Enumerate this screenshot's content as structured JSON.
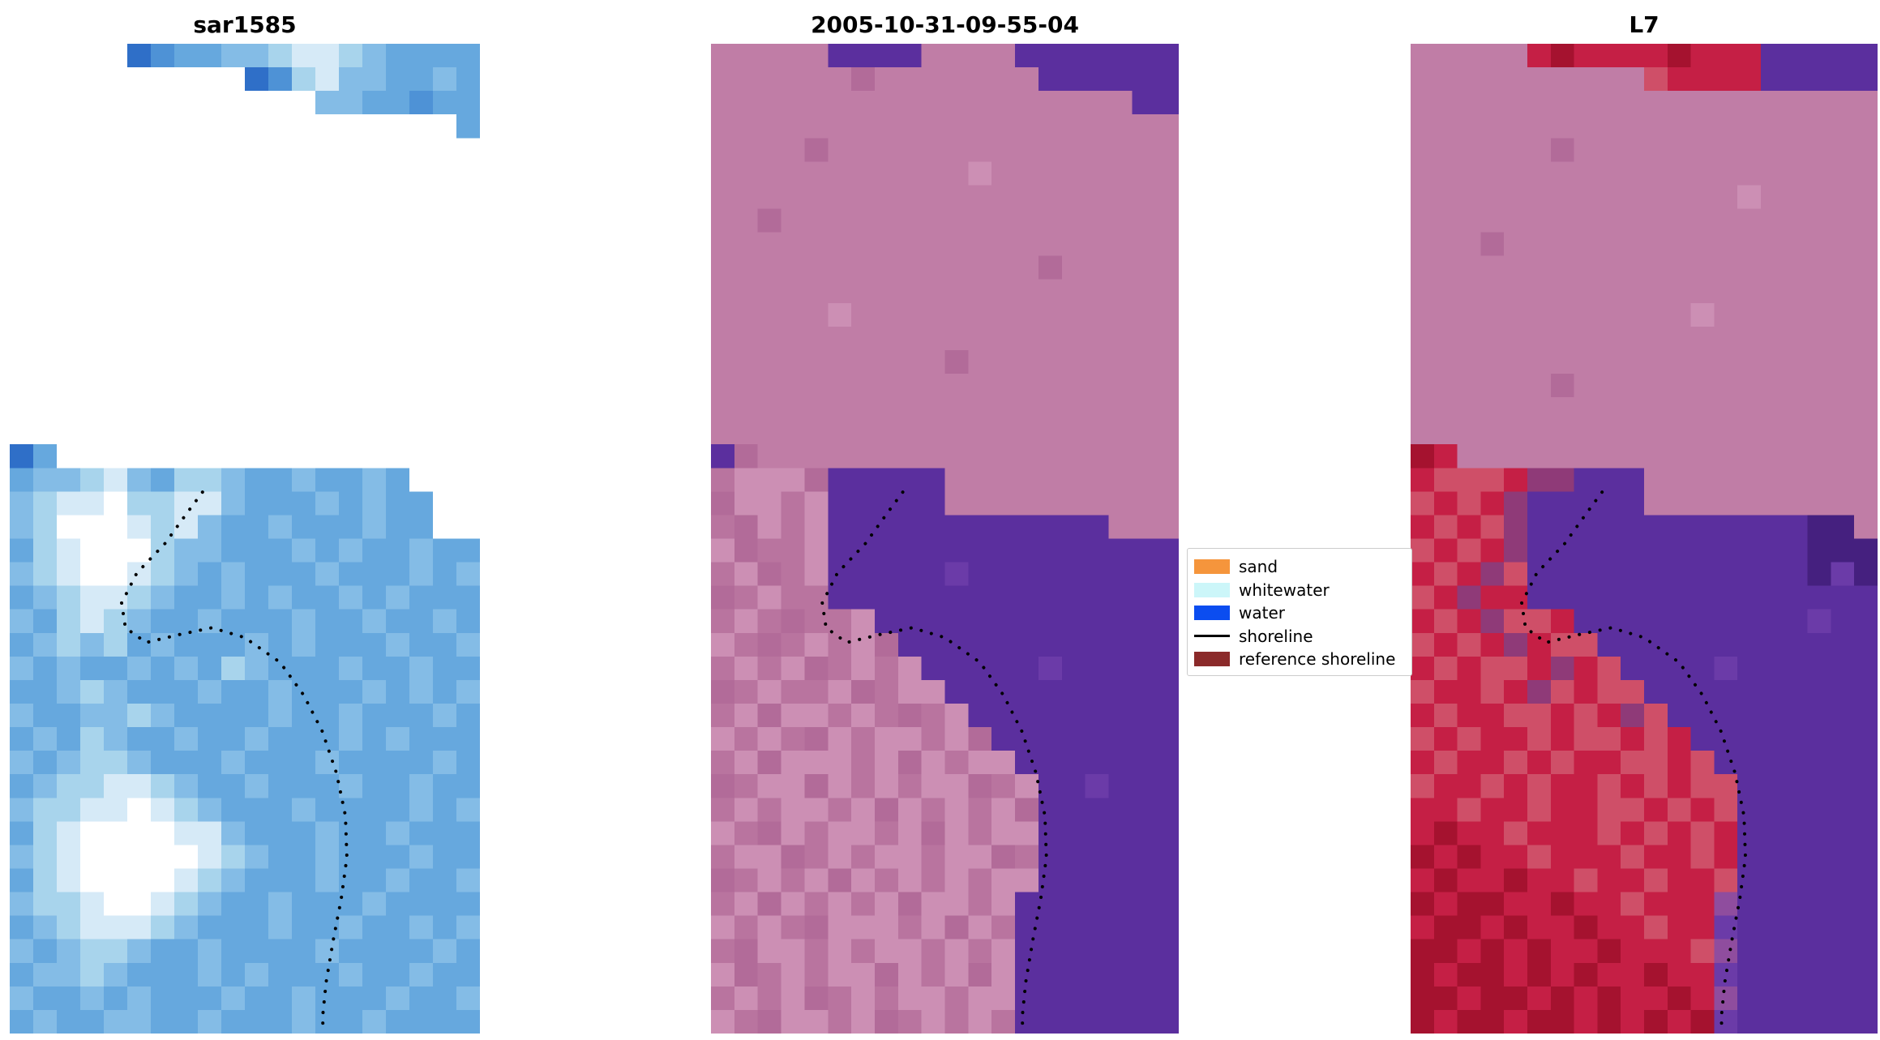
{
  "panels": [
    {
      "title": "sar1585",
      "grid": {
        "palette": {
          "f": "#2f6fc8",
          "a": "#4e92d6",
          "b": "#66a8de",
          "c": "#84bce6",
          "d": "#a8d4ec",
          "e": "#d6eaf7",
          "w": "#ffffff"
        },
        "rows": [
          ".....fabbccdeedcbbbb",
          "..........fadeccbbcb",
          ".............ccbbabb",
          "...................b",
          "....................",
          "....................",
          "....................",
          "....................",
          "....................",
          "....................",
          "....................",
          "....................",
          "....................",
          "....................",
          "....................",
          "....................",
          "....................",
          "fb..................",
          "bccdecbddcbbcbbcb...",
          "cdeewddeecbbbcbcbb..",
          "cdwwwedecbbcbbbcbb..",
          "bdewwwdccbbbcbcbbcbb",
          "cdewwedcbcbbbcbbbcbc",
          "bcdeedcbbcbcbbcbcbbb",
          "cbdedcbbcbbbcbbcbbcb",
          "bcdcdbcbbbcbcbbbcbbc",
          "cbcbbcbcbdcbbbcbbcbb",
          "bbcdcbbbcbbcbbbcbcbc",
          "cbbccdcbbbbcbbcbbbcb",
          "bcbdcbbcbbcbbbcbcbbb",
          "cbcddcbbbcbbbcbbbbcb",
          "bcddeedcbbcbbbcbbcbb",
          "cddeewedcbbbcbbbbcbc",
          "bdewwwweecbbbcbbcbbb",
          "cdewwwwwedcbbcbbbcbb",
          "bdewwwwedcbbbcbbcbbc",
          "cddewwedcbbcbbbcbbbb",
          "bcdeeedcbbbcbbcbbcbc",
          "cbcddcbbcbbbbcbbbbcb",
          "bccdcbbbcbcbbbcbbcbb",
          "cbbcbcbbbcbbcbbbcbbc",
          "bcbbccbbcbbbcbbcbbbb"
        ]
      }
    },
    {
      "title": "2005-10-31-09-55-04",
      "grid": {
        "palette": {
          "p": "#c07da6",
          "q": "#b26b99",
          "s": "#cc8fb4",
          "n": "#b9749f",
          "u": "#5b2f9e",
          "v": "#6b3ba8",
          "d": "#4a2387"
        },
        "rows": [
          "pppppuuuuppppuuuuuuu",
          "ppppppqpppppppuuuuuu",
          "ppppppppppppppppppuu",
          "pppppppppppppppppppp",
          "ppppqppppppppppppppp",
          "pppppppppppspppppppp",
          "pppppppppppppppppppp",
          "ppqppppppppppppppppp",
          "pppppppppppppppppppp",
          "ppppppppppppppqppppp",
          "pppppppppppppppppppp",
          "pppppspppppppppppppp",
          "pppppppppppppppppppp",
          "ppppppppppqppppppppp",
          "pppppppppppppppppppp",
          "pppppppppppppppppppp",
          "pppppppppppppppppppp",
          "uqpppppppppppppppppp",
          "nsssquuuuupppppppppp",
          "qssnsuuuuupppppppppp",
          "nqsnsuuuuuuuuuuuuppp",
          "sqnnsuuuuuuuuuuuuuuu",
          "nsqnsuuuuuvuuuuuuuuu",
          "qnsnnuuuuuuuuuuuuuuu",
          "nsnqnnsuuuuuuuuuuuuu",
          "snqnsnsquuuuuuuuuuuu",
          "nsnsqnsnsuuuuuvuuuuu",
          "qnsnnsqnssuuuuuuuuuu",
          "nsqssnsnqnsuuuuuuuuu",
          "snsnqsnssnsquuuuuuuu",
          "nsqsssnsqsnssuuuuuuu",
          "qnssqsnsnssqnsuuvuuu",
          "nsnssnsqsnsnsquuuuuu",
          "snqsnssnsqsnssuuuuuu",
          "nssqnsnssnssqnuuuuuu",
          "qnsnsqsnsnsnssuuuuuu",
          "nsqsnsnsqssnsuuuuuuu",
          "snsnqsssnsqsnuuuuuuu",
          "nqssnsnssnsnsuuuuuuu",
          "sqnsnssqsnsqsuuuuuuu",
          "nsnsqnsnssnssuuuuuuu",
          "snqssnsqnsnsnuuuuuuu"
        ]
      }
    },
    {
      "title": "L7",
      "grid": {
        "palette": {
          "p": "#c07da6",
          "q": "#b26b99",
          "s": "#cc8fb4",
          "r": "#c51f45",
          "R": "#a5122f",
          "x": "#cf4f68",
          "y": "#8f3a78",
          "u": "#5b2f9e",
          "v": "#6b3ba8",
          "d": "#45207f",
          "m": "#8f4d9e"
        },
        "rows": [
          "ppppprRrrrrRrrruuuuu",
          "ppppppppppxrrrruuuuu",
          "pppppppppppppppppppp",
          "pppppppppppppppppppp",
          "ppppppqppppppppppppp",
          "pppppppppppppppppppp",
          "ppppppppppppppsppppp",
          "pppppppppppppppppppp",
          "pppqpppppppppppppppp",
          "pppppppppppppppppppp",
          "pppppppppppppppppppp",
          "ppppppppppppsppppppp",
          "pppppppppppppppppppp",
          "pppppppppppppppppppp",
          "ppppppqppppppppppppp",
          "pppppppppppppppppppp",
          "pppppppppppppppppppp",
          "Rrpppppppppppppppppp",
          "rxxxryyuuupppppppppp",
          "xrxryuuuuupppppppppp",
          "rxrxyuuuuuuuuuuuuddp",
          "xrxryuuuuuuuuuuuuddd",
          "rxryxuuuuuuuuuuuudvd",
          "xryrruuuuuuuuuuuuuuu",
          "rxryxxruuuuuuuuuuvuu",
          "xrxryrxxuuuuuuuuuuuu",
          "rxrxxryrxuuuuvuuuuuu",
          "xrrxryxrxxuuuuuuuuuu",
          "rxrrxxrxryxuuuuuuuuu",
          "xrxrrxrxxrxruuuuuuuu",
          "rxrrxrxrrxxrxuuuuuuu",
          "xrrxrxrrxrxrxxuuuuuu",
          "rrxrrxrrxxrxrxuuuuuu",
          "rRrrxrrrxrxrxruuuuuu",
          "RrRrrxrrrxrrxruuuuuu",
          "rRrrRrrxrrxrrxuuuuuu",
          "RrRRrrRrrxrrrmuuuuuu",
          "rRRrRrrRrrxrrvuuuuuu",
          "RRrRrRrrRrrrxmuuuuuu",
          "RrRRrRrRrrRrrvuuuuuu",
          "RRrRRrRrRrrRrmuuuuuu",
          "RrRRrRRrRrRrRvuuuuuu"
        ]
      }
    }
  ],
  "shoreline": {
    "color": "#000000",
    "style": "dotted",
    "points": [
      [
        0.41,
        0.453
      ],
      [
        0.377,
        0.474
      ],
      [
        0.33,
        0.505
      ],
      [
        0.27,
        0.535
      ],
      [
        0.238,
        0.565
      ],
      [
        0.246,
        0.59
      ],
      [
        0.29,
        0.605
      ],
      [
        0.36,
        0.597
      ],
      [
        0.43,
        0.59
      ],
      [
        0.5,
        0.6
      ],
      [
        0.575,
        0.625
      ],
      [
        0.625,
        0.658
      ],
      [
        0.665,
        0.695
      ],
      [
        0.695,
        0.737
      ],
      [
        0.714,
        0.78
      ],
      [
        0.717,
        0.822
      ],
      [
        0.705,
        0.864
      ],
      [
        0.688,
        0.906
      ],
      [
        0.673,
        0.948
      ],
      [
        0.665,
        0.985
      ],
      [
        0.668,
        1.0
      ]
    ]
  },
  "legend": {
    "items": [
      {
        "label": "sand",
        "color": "#f5953c",
        "swatch": "patch"
      },
      {
        "label": "whitewater",
        "color": "#ccf6f9",
        "swatch": "patch"
      },
      {
        "label": "water",
        "color": "#0b4df0",
        "swatch": "patch"
      },
      {
        "label": "shoreline",
        "color": "#000000",
        "swatch": "line"
      },
      {
        "label": "reference shoreline",
        "color": "#8b2a2a",
        "swatch": "patch"
      }
    ]
  }
}
